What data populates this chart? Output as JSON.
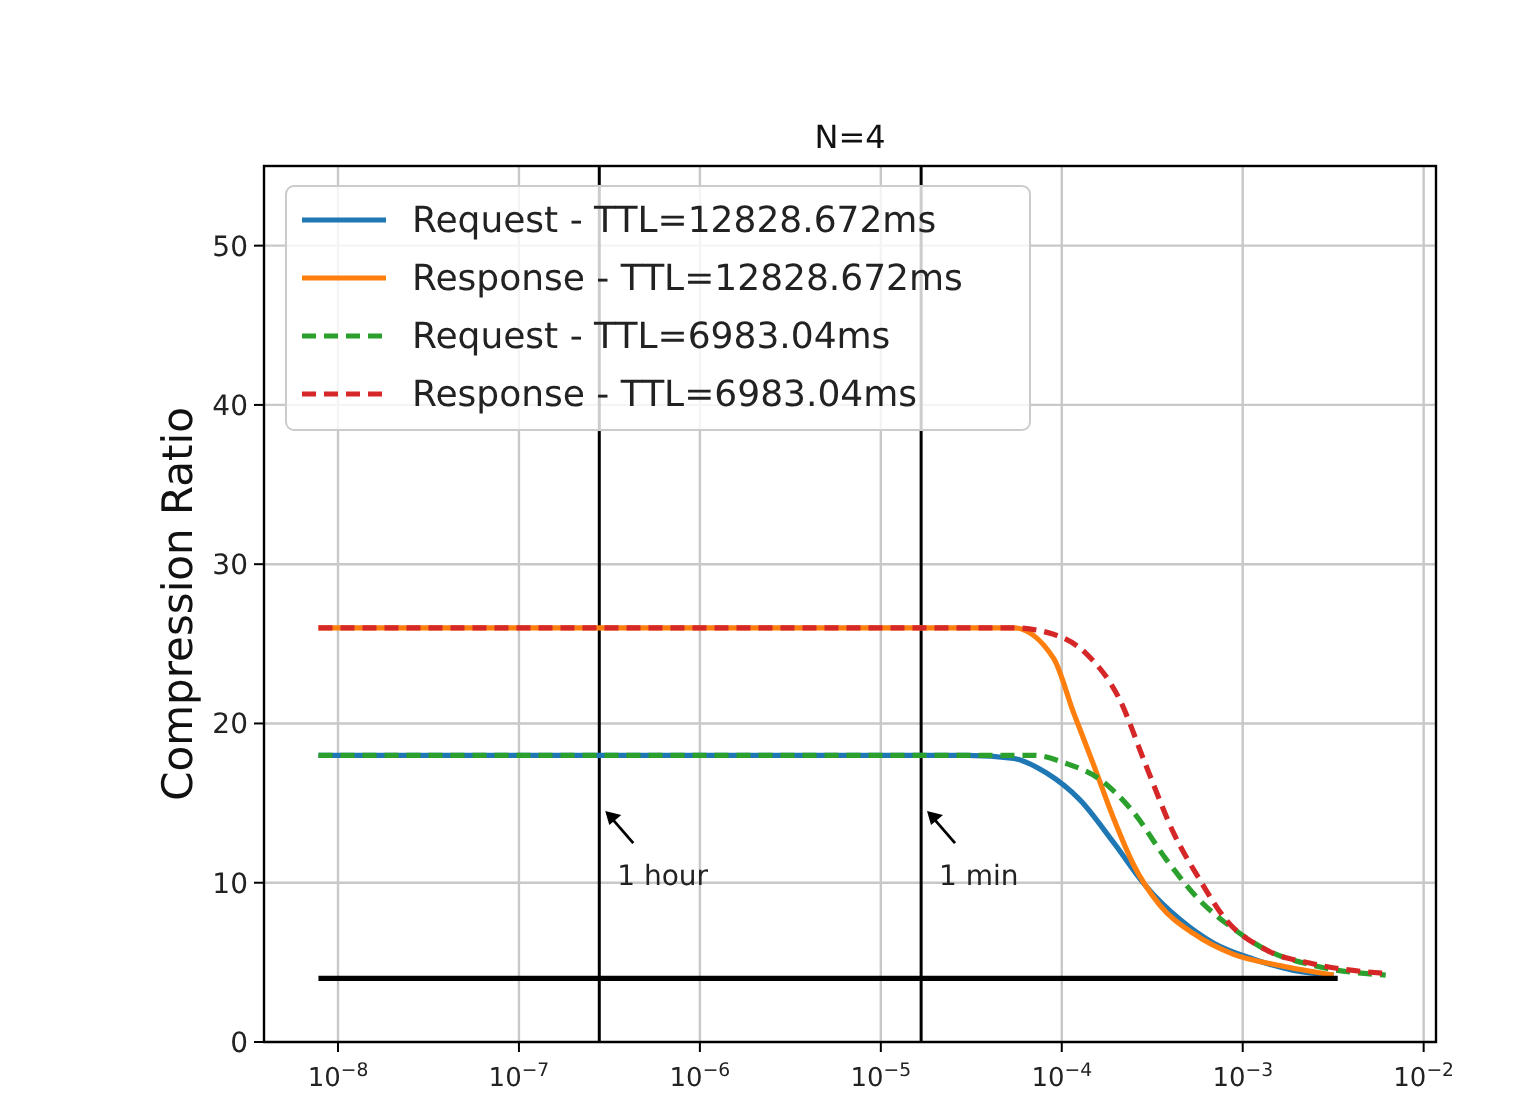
{
  "chart_data": {
    "type": "line",
    "title": "N=4",
    "ylabel": "Compression Ratio",
    "log": "x",
    "grid": true,
    "legend": "top left",
    "marker": "none",
    "xlim": [
      3.9e-09,
      0.0117
    ],
    "ylim": [
      0,
      55
    ],
    "xticks": [
      {
        "value": 1e-08,
        "label": "10$^{−8}$"
      },
      {
        "value": 1e-07,
        "label": "10$^{−7}$"
      },
      {
        "value": 1e-06,
        "label": "10$^{−6}$"
      },
      {
        "value": 1e-05,
        "label": "10$^{−5}$"
      },
      {
        "value": 0.0001,
        "label": "10$^{−4}$"
      },
      {
        "value": 0.001,
        "label": "10$^{−3}$"
      },
      {
        "value": 0.01,
        "label": "10$^{−2}$"
      }
    ],
    "yticks": [
      0,
      10,
      20,
      30,
      40,
      50
    ],
    "series": [
      {
        "name": "Request - TTL=12828.672ms",
        "color": "#1f77b4",
        "line_style": "solid",
        "x": [
          7.8e-09,
          3e-05,
          5.43e-05,
          8.2e-05,
          0.000126,
          0.000194,
          0.000291,
          0.000449,
          0.000692,
          0.00115,
          0.00191,
          0.00318
        ],
        "values": [
          18,
          18,
          17.8,
          16.9,
          15.2,
          12.5,
          9.8,
          7.7,
          6.2,
          5.2,
          4.5,
          4.2
        ]
      },
      {
        "name": "Response - TTL=12828.672ms",
        "color": "#ff7f0e",
        "line_style": "solid",
        "x": [
          7.8e-09,
          3e-05,
          5.43e-05,
          9e-05,
          0.000116,
          0.00015,
          0.000194,
          0.00025,
          0.000348,
          0.000536,
          0.000891,
          0.0016,
          0.00318
        ],
        "values": [
          26,
          26,
          26,
          24.1,
          20.7,
          17.4,
          14.0,
          11.1,
          8.6,
          6.8,
          5.5,
          4.8,
          4.2
        ]
      },
      {
        "name": "Request - TTL=6983.04ms",
        "color": "#2ca02c",
        "line_style": "dashed",
        "x": [
          7.8e-09,
          3e-05,
          7e-05,
          0.000105,
          0.000162,
          0.00025,
          0.000376,
          0.000578,
          0.000891,
          0.00134,
          0.00247,
          0.00617
        ],
        "values": [
          18,
          18,
          18,
          17.5,
          16.5,
          14.4,
          11.5,
          8.9,
          7.1,
          5.8,
          4.8,
          4.2
        ]
      },
      {
        "name": "Response - TTL=6983.04ms",
        "color": "#d62728",
        "line_style": "dashed",
        "x": [
          7.8e-09,
          3e-05,
          5.43e-05,
          9e-05,
          0.000136,
          0.000209,
          0.000291,
          0.000416,
          0.000578,
          0.000805,
          0.00134,
          0.00247,
          0.00617
        ],
        "values": [
          26,
          26,
          26,
          25.6,
          24.4,
          21.5,
          17.4,
          13.1,
          10.2,
          7.7,
          5.8,
          4.9,
          4.3
        ]
      },
      {
        "color": "#000000",
        "line_style": "solid",
        "x": [
          7.8e-09,
          0.00335
        ],
        "values": [
          4,
          4
        ]
      }
    ],
    "ref_lines": [
      {
        "axis": "x",
        "value": 2.78e-07,
        "color": "#000000"
      },
      {
        "axis": "x",
        "value": 1.67e-05,
        "color": "#000000"
      }
    ],
    "annotations": [
      {
        "text": "1 hour",
        "x": 3e-07,
        "y": 14.5
      },
      {
        "text": "1 min",
        "x": 1.8e-05,
        "y": 14.5
      }
    ]
  }
}
